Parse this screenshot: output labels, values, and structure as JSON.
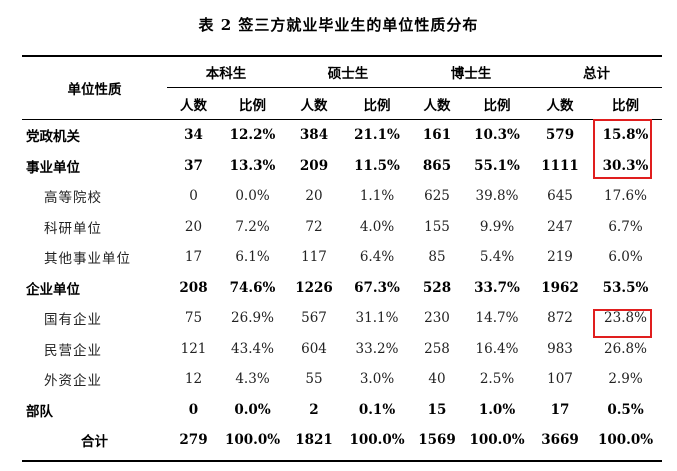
{
  "title": "表 2 签三方就业毕业生的单位性质分布",
  "header": {
    "corner": "单位性质",
    "groups": [
      "本科生",
      "硕士生",
      "博士生",
      "总计"
    ],
    "count_label": "人数",
    "ratio_label": "比例"
  },
  "rows": [
    {
      "label": "党政机关",
      "values": [
        "34",
        "12.2%",
        "384",
        "21.1%",
        "161",
        "10.3%",
        "579",
        "15.8%"
      ]
    },
    {
      "label": "事业单位",
      "values": [
        "37",
        "13.3%",
        "209",
        "11.5%",
        "865",
        "55.1%",
        "1111",
        "30.3%"
      ]
    },
    {
      "label": "高等院校",
      "values": [
        "0",
        "0.0%",
        "20",
        "1.1%",
        "625",
        "39.8%",
        "645",
        "17.6%"
      ]
    },
    {
      "label": "科研单位",
      "values": [
        "20",
        "7.2%",
        "72",
        "4.0%",
        "155",
        "9.9%",
        "247",
        "6.7%"
      ]
    },
    {
      "label": "其他事业单位",
      "values": [
        "17",
        "6.1%",
        "117",
        "6.4%",
        "85",
        "5.4%",
        "219",
        "6.0%"
      ]
    },
    {
      "label": "企业单位",
      "values": [
        "208",
        "74.6%",
        "1226",
        "67.3%",
        "528",
        "33.7%",
        "1962",
        "53.5%"
      ]
    },
    {
      "label": "国有企业",
      "values": [
        "75",
        "26.9%",
        "567",
        "31.1%",
        "230",
        "14.7%",
        "872",
        "23.8%"
      ]
    },
    {
      "label": "民营企业",
      "values": [
        "121",
        "43.4%",
        "604",
        "33.2%",
        "258",
        "16.4%",
        "983",
        "26.8%"
      ]
    },
    {
      "label": "外资企业",
      "values": [
        "12",
        "4.3%",
        "55",
        "3.0%",
        "40",
        "2.5%",
        "107",
        "2.9%"
      ]
    },
    {
      "label": "部队",
      "values": [
        "0",
        "0.0%",
        "2",
        "0.1%",
        "15",
        "1.0%",
        "17",
        "0.5%"
      ]
    },
    {
      "label": "合计",
      "values": [
        "279",
        "100.0%",
        "1821",
        "100.0%",
        "1569",
        "100.0%",
        "3669",
        "100.0%"
      ]
    }
  ],
  "highlight_color": "#e01e1e"
}
